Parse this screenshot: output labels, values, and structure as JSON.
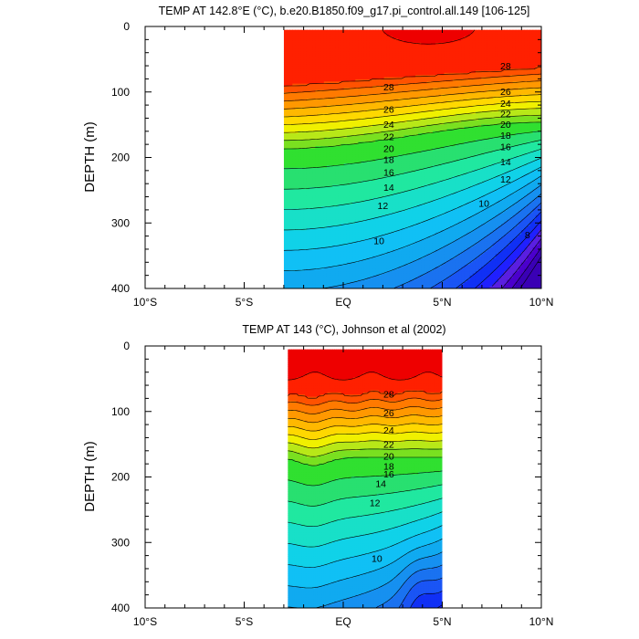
{
  "chart_data": [
    {
      "type": "contour",
      "title": "TEMP AT 142.8°E (°C), b.e20.B1850.f09_g17.pi_control.all.149 [106-125]",
      "ylabel": "DEPTH (m)",
      "xlabel": "",
      "xlim": [
        -10,
        10
      ],
      "ylim": [
        400,
        0
      ],
      "x_ticks": [
        "10°S",
        "5°S",
        "EQ",
        "5°N",
        "10°N"
      ],
      "y_ticks": [
        "0",
        "100",
        "200",
        "300",
        "400"
      ],
      "data_extent_lat": [
        -3,
        10
      ],
      "data_extent_depth": [
        5,
        400
      ],
      "contour_interval": 1,
      "contour_labels": [
        {
          "text": "28",
          "lat": 2.3,
          "depth": 92
        },
        {
          "text": "28",
          "lat": 8.2,
          "depth": 60
        },
        {
          "text": "26",
          "lat": 2.3,
          "depth": 126
        },
        {
          "text": "26",
          "lat": 8.2,
          "depth": 99
        },
        {
          "text": "24",
          "lat": 2.3,
          "depth": 149
        },
        {
          "text": "24",
          "lat": 8.2,
          "depth": 117
        },
        {
          "text": "22",
          "lat": 2.3,
          "depth": 168
        },
        {
          "text": "22",
          "lat": 8.2,
          "depth": 133
        },
        {
          "text": "20",
          "lat": 2.3,
          "depth": 186
        },
        {
          "text": "20",
          "lat": 8.2,
          "depth": 149
        },
        {
          "text": "18",
          "lat": 2.3,
          "depth": 203
        },
        {
          "text": "18",
          "lat": 8.2,
          "depth": 166
        },
        {
          "text": "16",
          "lat": 2.3,
          "depth": 222
        },
        {
          "text": "16",
          "lat": 8.2,
          "depth": 183
        },
        {
          "text": "14",
          "lat": 2.3,
          "depth": 245
        },
        {
          "text": "14",
          "lat": 8.2,
          "depth": 206
        },
        {
          "text": "12",
          "lat": 2.0,
          "depth": 273
        },
        {
          "text": "12",
          "lat": 8.2,
          "depth": 233
        },
        {
          "text": "10",
          "lat": 1.8,
          "depth": 327
        },
        {
          "text": "10",
          "lat": 7.1,
          "depth": 270
        },
        {
          "text": "8",
          "lat": 9.3,
          "depth": 318
        }
      ]
    },
    {
      "type": "contour",
      "title": "TEMP AT 143 (°C), Johnson et al (2002)",
      "ylabel": "DEPTH (m)",
      "xlabel": "",
      "xlim": [
        -10,
        10
      ],
      "ylim": [
        400,
        0
      ],
      "x_ticks": [
        "10°S",
        "5°S",
        "EQ",
        "5°N",
        "10°N"
      ],
      "y_ticks": [
        "0",
        "100",
        "200",
        "300",
        "400"
      ],
      "data_extent_lat": [
        -2.8,
        5
      ],
      "data_extent_depth": [
        5,
        400
      ],
      "contour_interval": 1,
      "contour_labels": [
        {
          "text": "28",
          "lat": 2.3,
          "depth": 73
        },
        {
          "text": "26",
          "lat": 2.3,
          "depth": 102
        },
        {
          "text": "24",
          "lat": 2.3,
          "depth": 128
        },
        {
          "text": "22",
          "lat": 2.3,
          "depth": 150
        },
        {
          "text": "20",
          "lat": 2.3,
          "depth": 168
        },
        {
          "text": "18",
          "lat": 2.3,
          "depth": 183
        },
        {
          "text": "16",
          "lat": 2.3,
          "depth": 195
        },
        {
          "text": "14",
          "lat": 1.9,
          "depth": 210
        },
        {
          "text": "12",
          "lat": 1.6,
          "depth": 239
        },
        {
          "text": "10",
          "lat": 1.7,
          "depth": 324
        }
      ]
    }
  ]
}
